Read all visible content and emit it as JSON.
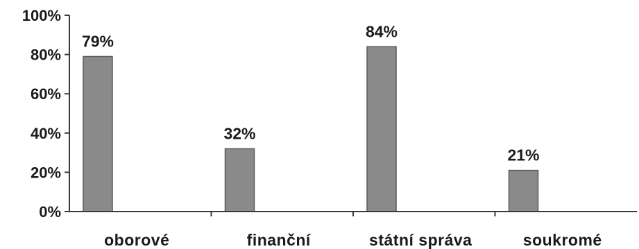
{
  "chart_data": {
    "type": "bar",
    "title": "",
    "xlabel": "",
    "ylabel": "",
    "categories": [
      "oborové",
      "finanční",
      "státní správa",
      "soukromé"
    ],
    "values": [
      79,
      32,
      84,
      21
    ],
    "data_labels": [
      "79%",
      "32%",
      "84%",
      "21%"
    ],
    "ylim": [
      0,
      100
    ],
    "yticks": [
      0,
      20,
      40,
      60,
      80,
      100
    ],
    "ytick_labels": [
      "0%",
      "20%",
      "40%",
      "60%",
      "80%",
      "100%"
    ],
    "grid": false,
    "legend": "none",
    "colors": {
      "bar": "#8a8a8a",
      "bar_edge": "#5a5a5a",
      "axis": "#3a3a3a",
      "text": "#1a1a1a"
    }
  }
}
